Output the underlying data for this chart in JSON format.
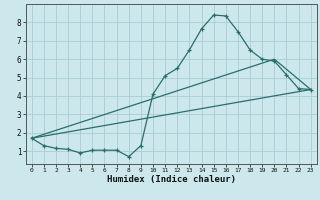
{
  "xlabel": "Humidex (Indice chaleur)",
  "background_color": "#cce8ec",
  "grid_color": "#a8cdd4",
  "line_color": "#2a6e6a",
  "xlim": [
    -0.5,
    23.5
  ],
  "ylim": [
    0.3,
    9.0
  ],
  "xticks": [
    0,
    1,
    2,
    3,
    4,
    5,
    6,
    7,
    8,
    9,
    10,
    11,
    12,
    13,
    14,
    15,
    16,
    17,
    18,
    19,
    20,
    21,
    22,
    23
  ],
  "yticks": [
    1,
    2,
    3,
    4,
    5,
    6,
    7,
    8
  ],
  "line1_x": [
    0,
    1,
    2,
    3,
    4,
    5,
    6,
    7,
    8,
    9,
    10,
    11,
    12,
    13,
    14,
    15,
    16,
    17,
    18,
    19,
    20,
    21,
    22,
    23
  ],
  "line1_y": [
    1.7,
    1.3,
    1.15,
    1.1,
    0.9,
    1.05,
    1.05,
    1.05,
    0.7,
    1.3,
    4.1,
    5.1,
    5.5,
    6.5,
    7.65,
    8.4,
    8.35,
    7.5,
    6.5,
    6.0,
    5.9,
    5.15,
    4.4,
    4.35
  ],
  "line2_x": [
    0,
    23
  ],
  "line2_y": [
    1.7,
    4.35
  ],
  "line3_x": [
    0,
    20,
    23
  ],
  "line3_y": [
    1.7,
    6.0,
    4.35
  ]
}
